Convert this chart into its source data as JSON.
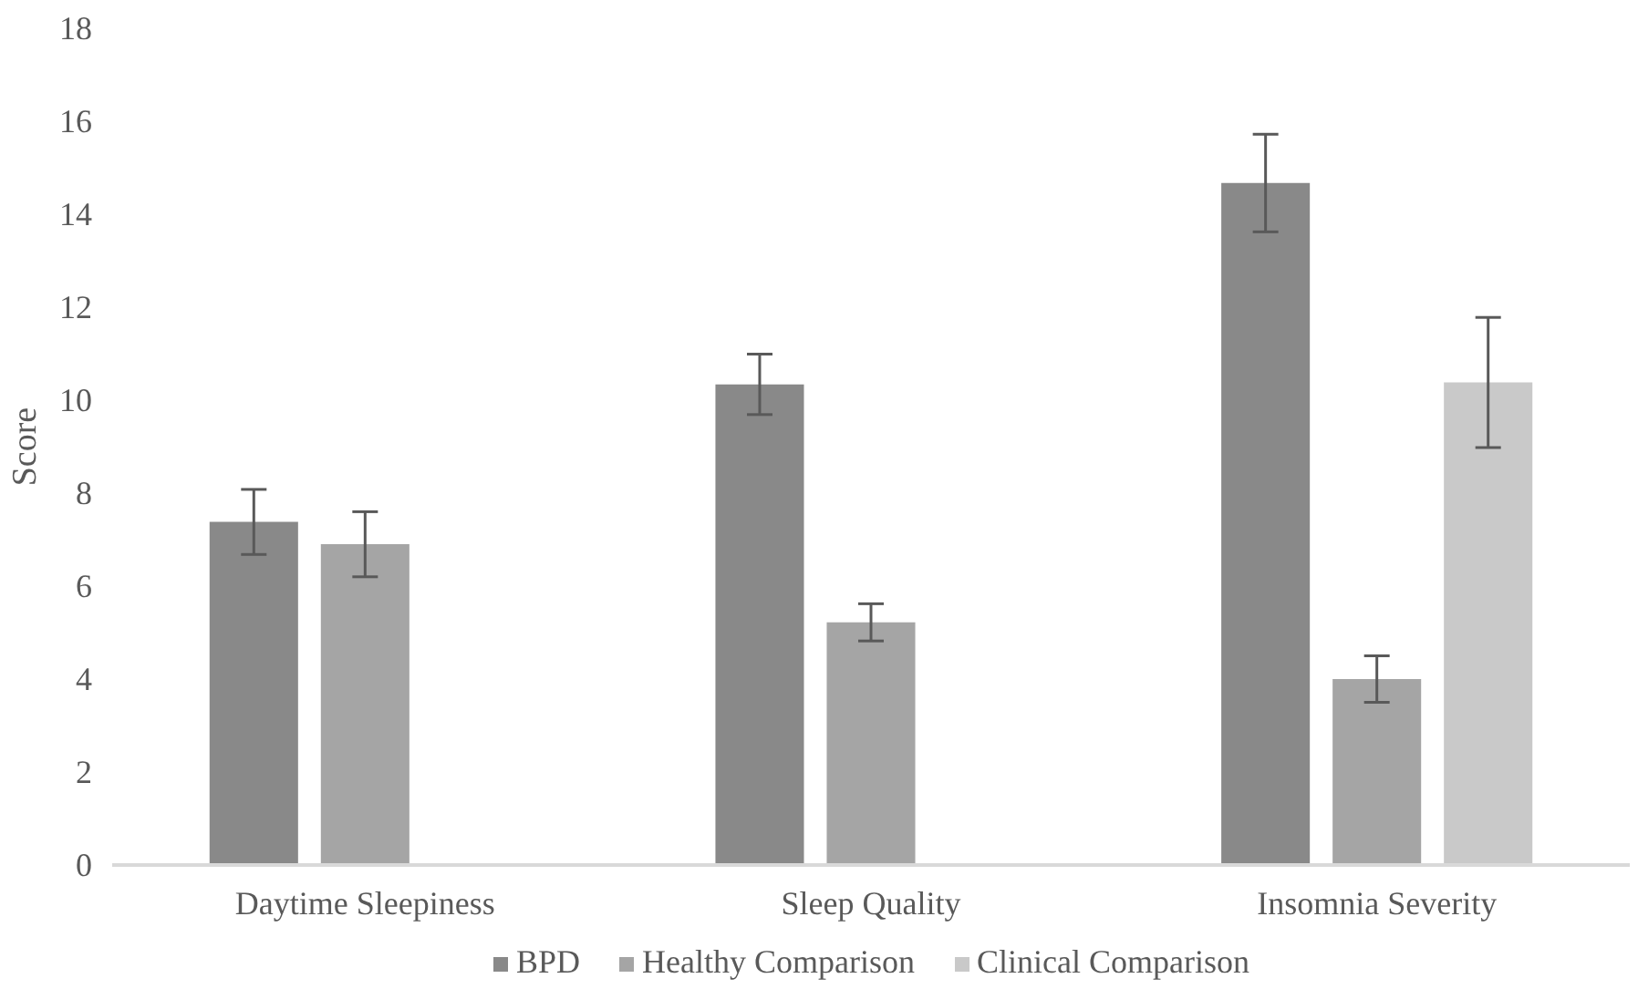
{
  "chart_data": {
    "type": "bar",
    "ylabel": "Score",
    "categories": [
      "Daytime Sleepiness",
      "Sleep Quality",
      "Insomnia Severity"
    ],
    "series": [
      {
        "name": "BPD",
        "color": "#898989",
        "values": [
          7.38,
          10.34,
          14.67
        ],
        "errors": [
          0.7,
          0.65,
          1.05
        ]
      },
      {
        "name": "Healthy Comparison",
        "color": "#a5a5a5",
        "values": [
          6.9,
          5.22,
          4.0
        ],
        "errors": [
          0.7,
          0.4,
          0.5
        ]
      },
      {
        "name": "Clinical Comparison",
        "color": "#c9c9c9",
        "values": [
          null,
          null,
          10.38
        ],
        "errors": [
          null,
          null,
          1.4
        ]
      }
    ],
    "ylim": [
      0,
      18
    ],
    "yticks": [
      0,
      2,
      4,
      6,
      8,
      10,
      12,
      14,
      16,
      18
    ],
    "grid": false,
    "legend": "bottom"
  }
}
